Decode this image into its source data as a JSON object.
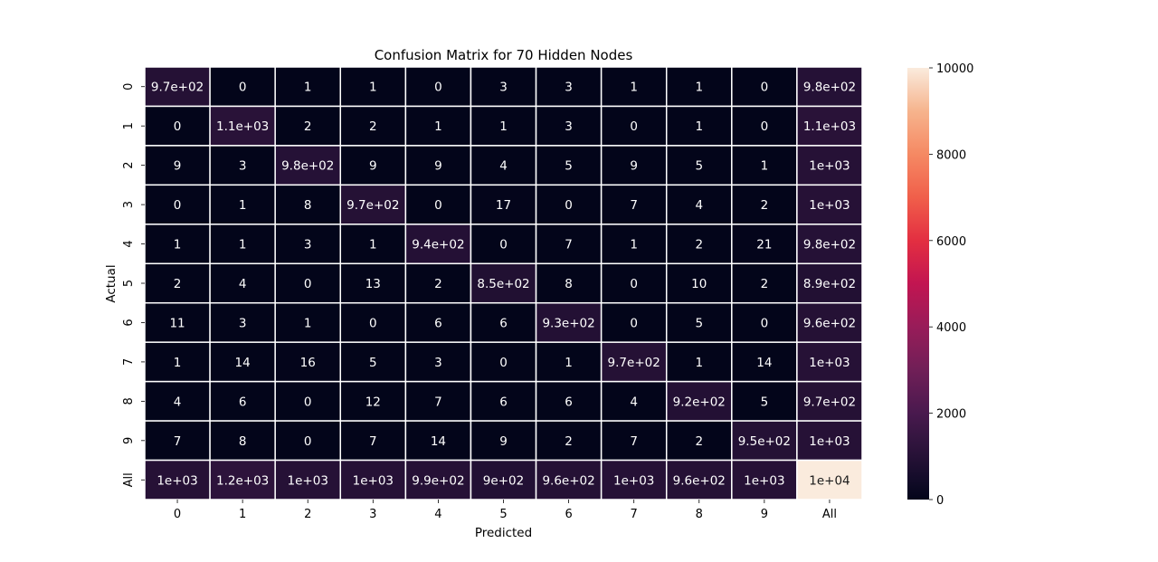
{
  "chart_data": {
    "type": "heatmap",
    "title": "Confusion Matrix for 70 Hidden Nodes",
    "xlabel": "Predicted",
    "ylabel": "Actual",
    "x_categories": [
      "0",
      "1",
      "2",
      "3",
      "4",
      "5",
      "6",
      "7",
      "8",
      "9",
      "All"
    ],
    "y_categories": [
      "0",
      "1",
      "2",
      "3",
      "4",
      "5",
      "6",
      "7",
      "8",
      "9",
      "All"
    ],
    "values": [
      [
        970,
        0,
        1,
        1,
        0,
        3,
        3,
        1,
        1,
        0,
        980
      ],
      [
        0,
        1100,
        2,
        2,
        1,
        1,
        3,
        0,
        1,
        0,
        1100
      ],
      [
        9,
        3,
        980,
        9,
        9,
        4,
        5,
        9,
        5,
        1,
        1000
      ],
      [
        0,
        1,
        8,
        970,
        0,
        17,
        0,
        7,
        4,
        2,
        1000
      ],
      [
        1,
        1,
        3,
        1,
        940,
        0,
        7,
        1,
        2,
        21,
        980
      ],
      [
        2,
        4,
        0,
        13,
        2,
        850,
        8,
        0,
        10,
        2,
        890
      ],
      [
        11,
        3,
        1,
        0,
        6,
        6,
        930,
        0,
        5,
        0,
        960
      ],
      [
        1,
        14,
        16,
        5,
        3,
        0,
        1,
        970,
        1,
        14,
        1000
      ],
      [
        4,
        6,
        0,
        12,
        7,
        6,
        6,
        4,
        920,
        5,
        970
      ],
      [
        7,
        8,
        0,
        7,
        14,
        9,
        2,
        7,
        2,
        950,
        1000
      ],
      [
        1000,
        1200,
        1000,
        1000,
        990,
        900,
        960,
        1000,
        960,
        1000,
        10000
      ]
    ],
    "labels": [
      [
        "9.7e+02",
        "0",
        "1",
        "1",
        "0",
        "3",
        "3",
        "1",
        "1",
        "0",
        "9.8e+02"
      ],
      [
        "0",
        "1.1e+03",
        "2",
        "2",
        "1",
        "1",
        "3",
        "0",
        "1",
        "0",
        "1.1e+03"
      ],
      [
        "9",
        "3",
        "9.8e+02",
        "9",
        "9",
        "4",
        "5",
        "9",
        "5",
        "1",
        "1e+03"
      ],
      [
        "0",
        "1",
        "8",
        "9.7e+02",
        "0",
        "17",
        "0",
        "7",
        "4",
        "2",
        "1e+03"
      ],
      [
        "1",
        "1",
        "3",
        "1",
        "9.4e+02",
        "0",
        "7",
        "1",
        "2",
        "21",
        "9.8e+02"
      ],
      [
        "2",
        "4",
        "0",
        "13",
        "2",
        "8.5e+02",
        "8",
        "0",
        "10",
        "2",
        "8.9e+02"
      ],
      [
        "11",
        "3",
        "1",
        "0",
        "6",
        "6",
        "9.3e+02",
        "0",
        "5",
        "0",
        "9.6e+02"
      ],
      [
        "1",
        "14",
        "16",
        "5",
        "3",
        "0",
        "1",
        "9.7e+02",
        "1",
        "14",
        "1e+03"
      ],
      [
        "4",
        "6",
        "0",
        "12",
        "7",
        "6",
        "6",
        "4",
        "9.2e+02",
        "5",
        "9.7e+02"
      ],
      [
        "7",
        "8",
        "0",
        "7",
        "14",
        "9",
        "2",
        "7",
        "2",
        "9.5e+02",
        "1e+03"
      ],
      [
        "1e+03",
        "1.2e+03",
        "1e+03",
        "1e+03",
        "9.9e+02",
        "9e+02",
        "9.6e+02",
        "1e+03",
        "9.6e+02",
        "1e+03",
        "1e+04"
      ]
    ],
    "colorbar": {
      "min": 0,
      "max": 10000,
      "ticks": [
        0,
        2000,
        4000,
        6000,
        8000,
        10000
      ],
      "colormap": "rocket"
    },
    "grid": false,
    "cell_separator_color": "#ffffff"
  }
}
